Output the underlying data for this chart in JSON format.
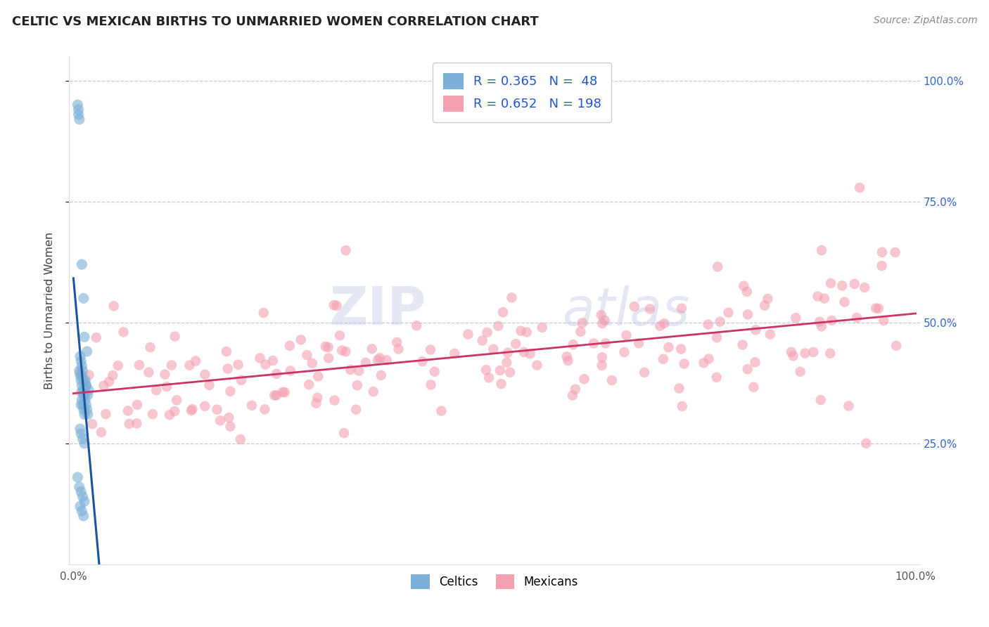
{
  "title": "CELTIC VS MEXICAN BIRTHS TO UNMARRIED WOMEN CORRELATION CHART",
  "source": "Source: ZipAtlas.com",
  "ylabel": "Births to Unmarried Women",
  "celtics_R": 0.365,
  "celtics_N": 48,
  "mexicans_R": 0.652,
  "mexicans_N": 198,
  "celtics_color": "#7ab0d8",
  "mexicans_color": "#f4a0b0",
  "celtics_line_color": "#1a55a0",
  "mexicans_line_color": "#cc3366",
  "background_color": "#ffffff",
  "watermark_zip": "ZIP",
  "watermark_atlas": "atlas",
  "title_color": "#222222",
  "source_color": "#888888",
  "right_tick_color": "#3366cc",
  "grid_color": "#c8c8d8",
  "ylabel_color": "#444444"
}
